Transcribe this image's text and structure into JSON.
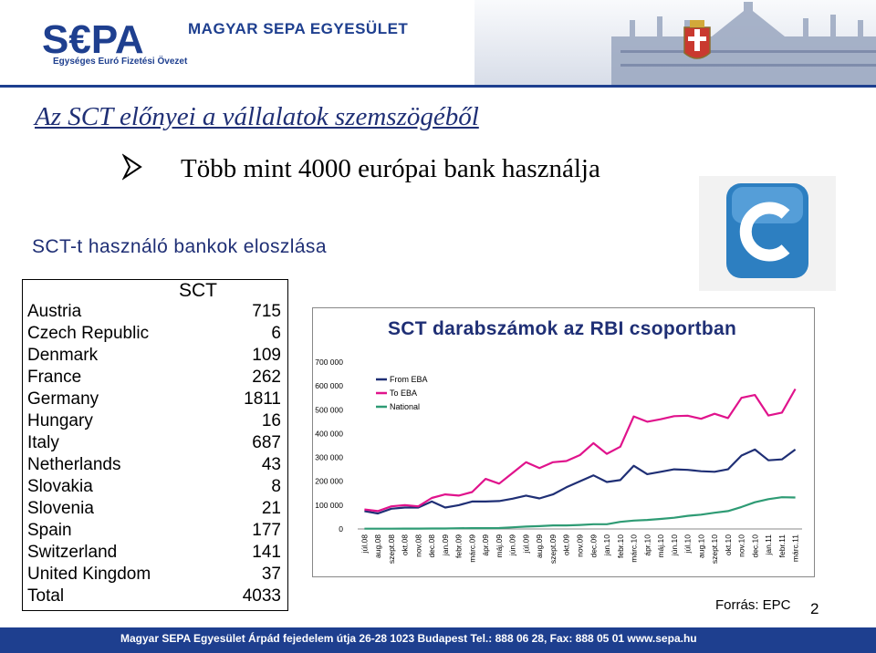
{
  "header": {
    "logo_text": "S€PA",
    "logo_subtitle": "Egységes Euró Fizetési Övezet",
    "org_name": "MAGYAR SEPA EGYESÜLET"
  },
  "slide": {
    "title": "Az SCT előnyei a vállalatok szemszögéből",
    "bullet_text": "Több mint 4000 európai bank használja",
    "subtitle": "SCT-t használó bankok eloszlása"
  },
  "table": {
    "header": "SCT",
    "rows": [
      {
        "country": "Austria",
        "value": "715"
      },
      {
        "country": "Czech Republic",
        "value": "6"
      },
      {
        "country": "Denmark",
        "value": "109"
      },
      {
        "country": "France",
        "value": "262"
      },
      {
        "country": "Germany",
        "value": "1811"
      },
      {
        "country": "Hungary",
        "value": "16"
      },
      {
        "country": "Italy",
        "value": "687"
      },
      {
        "country": "Netherlands",
        "value": "43"
      },
      {
        "country": "Slovakia",
        "value": "8"
      },
      {
        "country": "Slovenia",
        "value": "21"
      },
      {
        "country": "Spain",
        "value": "177"
      },
      {
        "country": "Switzerland",
        "value": "141"
      },
      {
        "country": "United Kingdom",
        "value": "37"
      }
    ],
    "total_label": "Total",
    "total_value": "4033"
  },
  "chart_data": {
    "type": "line",
    "title": "SCT darabszámok az RBI csoportban",
    "xlabel": "",
    "ylabel": "",
    "ylim": [
      0,
      700000
    ],
    "yticks": [
      0,
      100000,
      200000,
      300000,
      400000,
      500000,
      600000,
      700000
    ],
    "ytick_labels": [
      "0",
      "100 000",
      "200 000",
      "300 000",
      "400 000",
      "500 000",
      "600 000",
      "700 000"
    ],
    "grid": false,
    "legend_position": "top-left",
    "x": [
      "júl.08",
      "aug.08",
      "szept.08",
      "okt.08",
      "nov.08",
      "dec.08",
      "jan.09",
      "febr.09",
      "márc.09",
      "ápr.09",
      "máj.09",
      "jún.09",
      "júl.09",
      "aug.09",
      "szept.09",
      "okt.09",
      "nov.09",
      "dec.09",
      "jan.10",
      "febr.10",
      "márc.10",
      "ápr.10",
      "máj.10",
      "jún.10",
      "júl.10",
      "aug.10",
      "szept.10",
      "okt.10",
      "nov.10",
      "dec.10",
      "jan.11",
      "febr.11",
      "márc.11"
    ],
    "series": [
      {
        "name": "From EBA",
        "color": "#1f2f75",
        "values": [
          75000,
          65000,
          85000,
          90000,
          90000,
          115000,
          90000,
          100000,
          115000,
          115000,
          117000,
          127000,
          140000,
          128000,
          145000,
          175000,
          200000,
          225000,
          197000,
          205000,
          265000,
          230000,
          240000,
          250000,
          248000,
          242000,
          240000,
          250000,
          308000,
          333000,
          288000,
          292000,
          333000
        ]
      },
      {
        "name": "To EBA",
        "color": "#e0138c",
        "values": [
          82000,
          75000,
          95000,
          100000,
          95000,
          130000,
          145000,
          140000,
          155000,
          210000,
          190000,
          235000,
          280000,
          255000,
          280000,
          285000,
          310000,
          360000,
          315000,
          345000,
          472000,
          450000,
          460000,
          473000,
          475000,
          462000,
          483000,
          465000,
          550000,
          562000,
          476000,
          488000,
          587000
        ]
      },
      {
        "name": "National",
        "color": "#2e9b74",
        "values": [
          1000,
          1000,
          1000,
          1500,
          1500,
          2000,
          2000,
          3000,
          3500,
          3500,
          4000,
          7000,
          10000,
          12000,
          15000,
          15000,
          17000,
          20000,
          20000,
          30000,
          35000,
          38000,
          42000,
          47000,
          55000,
          60000,
          68000,
          75000,
          92000,
          112000,
          125000,
          133000,
          132000
        ]
      }
    ]
  },
  "source": "Forrás: EPC",
  "page_number": "2",
  "footer": "Magyar SEPA Egyesület Árpád fejedelem útja 26-28 1023 Budapest Tel.: 888 06 28, Fax: 888 05 01 www.sepa.hu"
}
